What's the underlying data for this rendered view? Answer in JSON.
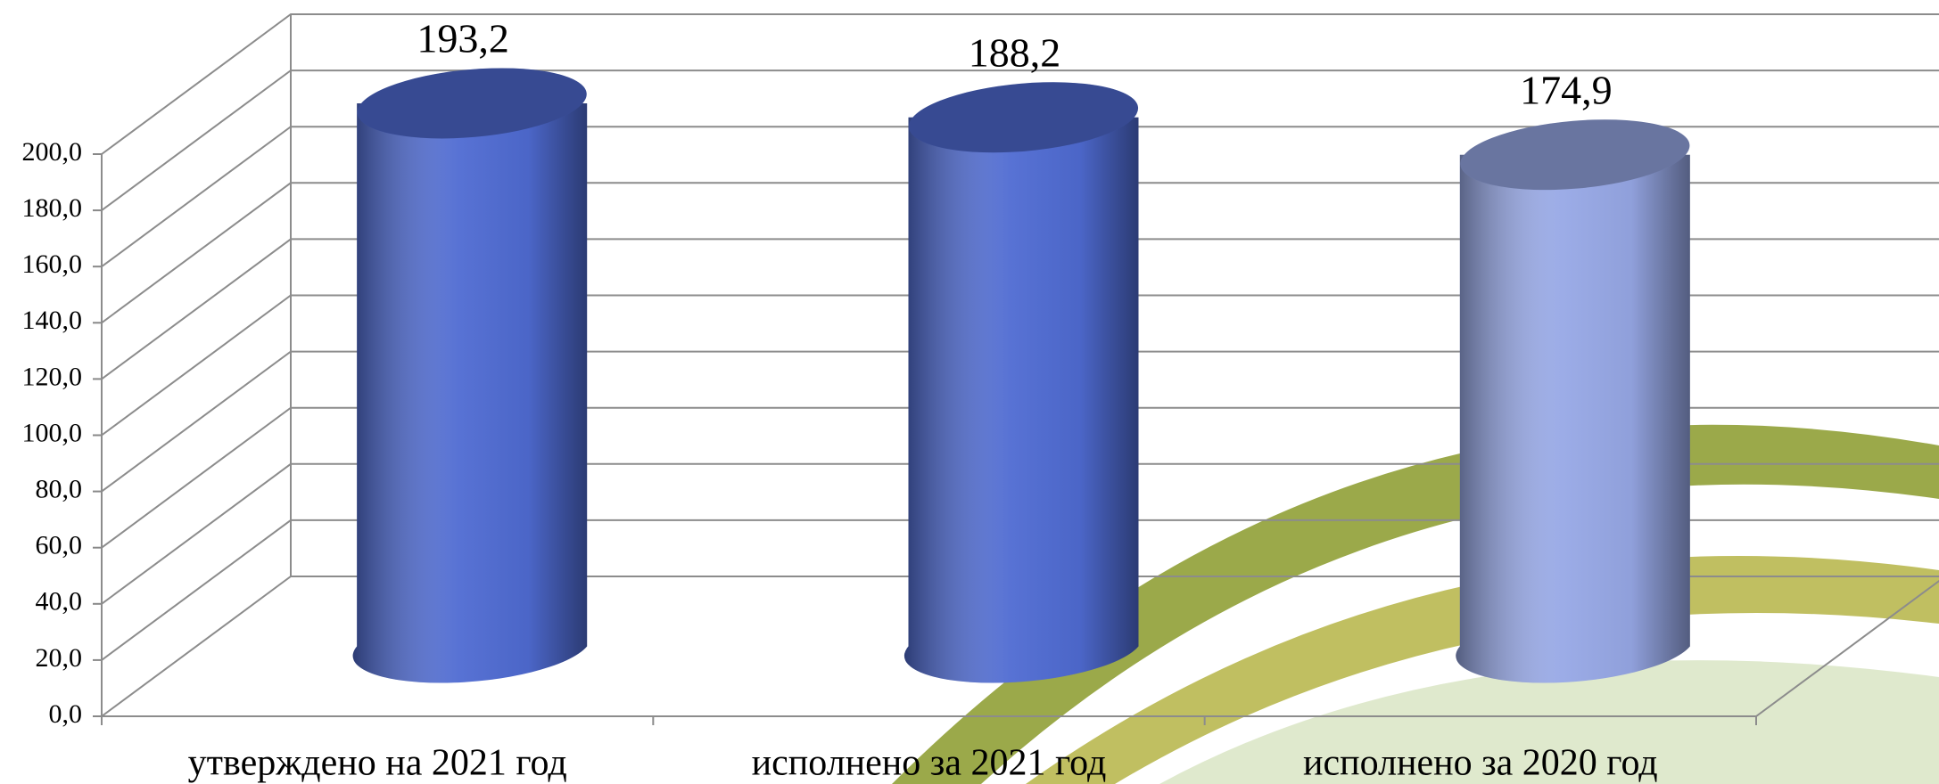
{
  "chart_data": {
    "type": "cylinder",
    "categories": [
      "утверждено на 2021 год",
      "исполнено за 2021 год",
      "исполнено за 2020 год"
    ],
    "values": [
      193.2,
      188.2,
      174.9
    ],
    "value_labels": [
      "193,2",
      "188,2",
      "174,9"
    ],
    "colors": [
      "#4f6bd2",
      "#4f6bd2",
      "#97a8e6"
    ],
    "ylim": [
      0,
      200
    ],
    "yticks": [
      {
        "value": 0,
        "label": "0,0"
      },
      {
        "value": 20,
        "label": "20,0"
      },
      {
        "value": 40,
        "label": "40,0"
      },
      {
        "value": 60,
        "label": "60,0"
      },
      {
        "value": 80,
        "label": "80,0"
      },
      {
        "value": 100,
        "label": "100,0"
      },
      {
        "value": 120,
        "label": "120,0"
      },
      {
        "value": 140,
        "label": "140,0"
      },
      {
        "value": 160,
        "label": "160,0"
      },
      {
        "value": 180,
        "label": "180,0"
      },
      {
        "value": 200,
        "label": "200,0"
      }
    ],
    "grid": true
  }
}
